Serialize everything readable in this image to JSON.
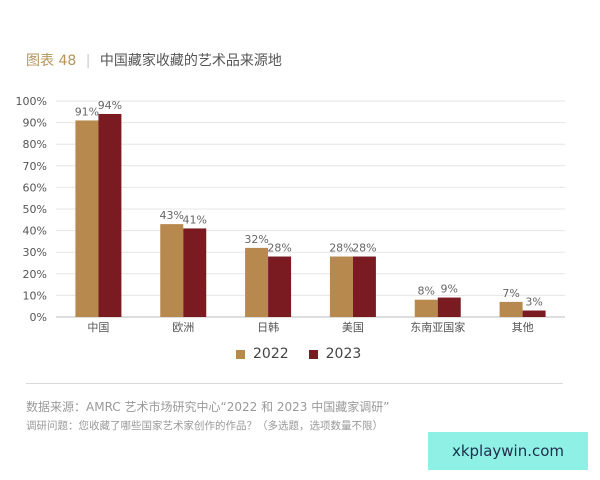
{
  "header": {
    "figure_label": "图表 48",
    "title": "中国藏家收藏的艺术品来源地"
  },
  "chart_data": {
    "type": "bar",
    "title": "中国藏家收藏的艺术品来源地",
    "xlabel": "",
    "ylabel": "",
    "ylim": [
      0,
      100
    ],
    "y_ticks": [
      "0%",
      "10%",
      "20%",
      "30%",
      "40%",
      "50%",
      "60%",
      "70%",
      "80%",
      "90%",
      "100%"
    ],
    "categories": [
      "中国",
      "欧洲",
      "日韩",
      "美国",
      "东南亚国家",
      "其他"
    ],
    "series": [
      {
        "name": "2022",
        "values": [
          91,
          43,
          32,
          28,
          8,
          7
        ],
        "labels": [
          "91%",
          "43%",
          "32%",
          "28%",
          "8%",
          "7%"
        ],
        "color": "#b8894e"
      },
      {
        "name": "2023",
        "values": [
          94,
          41,
          28,
          28,
          9,
          3
        ],
        "labels": [
          "94%",
          "41%",
          "28%",
          "28%",
          "9%",
          "3%"
        ],
        "color": "#7a1b22"
      }
    ],
    "grid": true,
    "legend": "bottom-center"
  },
  "footnotes": {
    "source": "数据来源：AMRC 艺术市场研究中心“2022 和 2023 中国藏家调研”",
    "question": "调研问题：您收藏了哪些国家艺术家创作的作品？（多选题，选项数量不限）"
  },
  "watermark": {
    "text": "xkplaywin.com"
  }
}
